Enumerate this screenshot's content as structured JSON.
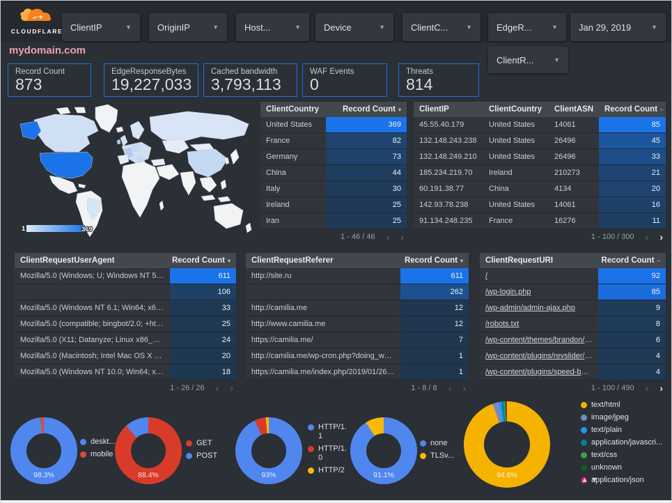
{
  "topbar": {
    "logo": "CLOUDFLARE",
    "filters": [
      "ClientIP",
      "OriginIP",
      "Host...",
      "Device",
      "ClientC...",
      "EdgeR..."
    ],
    "date_filter": "Jan 29, 2019",
    "extra_filter": "ClientR..."
  },
  "title": "mydomain.com",
  "scorecards": [
    {
      "label": "Record Count",
      "value": "873"
    },
    {
      "label": "EdgeResponseBytes",
      "value": "19,227,033"
    },
    {
      "label": "Cached bandwidth",
      "value": "3,793,113"
    },
    {
      "label": "WAF Events",
      "value": "0"
    },
    {
      "label": "Threats",
      "value": "814"
    }
  ],
  "map": {
    "legend_min": "1",
    "legend_max": "369",
    "min_color": "#dce9f8",
    "max_color": "#1a73e8"
  },
  "tables": [
    {
      "id": "country",
      "columns": [
        "ClientCountry",
        "Record Count"
      ],
      "sort_icon": "▾",
      "max": 369,
      "rows": [
        {
          "cells": [
            "United States"
          ],
          "count": 369
        },
        {
          "cells": [
            "France"
          ],
          "count": 82
        },
        {
          "cells": [
            "Germany"
          ],
          "count": 73
        },
        {
          "cells": [
            "China"
          ],
          "count": 44
        },
        {
          "cells": [
            "Italy"
          ],
          "count": 30
        },
        {
          "cells": [
            "Ireland"
          ],
          "count": 25
        },
        {
          "cells": [
            "Iran"
          ],
          "count": 25
        }
      ],
      "pagination": {
        "text": "1 - 46 / 46",
        "prev": false,
        "next": false
      }
    },
    {
      "id": "ip",
      "columns": [
        "ClientIP",
        "ClientCountry",
        "ClientASN",
        "Record Count"
      ],
      "sort_icon": "–",
      "max": 85,
      "rows": [
        {
          "cells": [
            "45.55.40.179",
            "United States",
            "14061"
          ],
          "count": 85
        },
        {
          "cells": [
            "132.148.243.238",
            "United States",
            "26496"
          ],
          "count": 45
        },
        {
          "cells": [
            "132.148.249.210",
            "United States",
            "26496"
          ],
          "count": 33
        },
        {
          "cells": [
            "185.234.219.70",
            "Ireland",
            "210273"
          ],
          "count": 21
        },
        {
          "cells": [
            "60.191.38.77",
            "China",
            "4134"
          ],
          "count": 20
        },
        {
          "cells": [
            "142.93.78.238",
            "United States",
            "14061"
          ],
          "count": 16
        },
        {
          "cells": [
            "91.134.248.235",
            "France",
            "16276"
          ],
          "count": 11
        }
      ],
      "pagination": {
        "text": "1 - 100 / 300",
        "prev": false,
        "next": true
      }
    },
    {
      "id": "ua",
      "columns": [
        "ClientRequestUserAgent",
        "Record Count"
      ],
      "sort_icon": "▾",
      "max": 611,
      "rows": [
        {
          "cells": [
            "Mozilla/5.0 (Windows; U; Windows NT 5.1; en-U..."
          ],
          "count": 611
        },
        {
          "cells": [
            ""
          ],
          "count": 106
        },
        {
          "cells": [
            "Mozilla/5.0 (Windows NT 6.1; Win64; x64; rv:64..."
          ],
          "count": 33
        },
        {
          "cells": [
            "Mozilla/5.0 (compatible; bingbot/2.0; +http://w..."
          ],
          "count": 25
        },
        {
          "cells": [
            "Mozilla/5.0 (X11; Datanyze; Linux x86_64) Appl..."
          ],
          "count": 24
        },
        {
          "cells": [
            "Mozilla/5.0 (Macintosh; Intel Mac OS X 10.11; r..."
          ],
          "count": 20
        },
        {
          "cells": [
            "Mozilla/5.0 (Windows NT 10.0; Win64; x64) App..."
          ],
          "count": 18
        }
      ],
      "pagination": {
        "text": "1 - 26 / 26",
        "prev": false,
        "next": false
      }
    },
    {
      "id": "ref",
      "columns": [
        "ClientRequestReferer",
        "Record Count"
      ],
      "sort_icon": "▾",
      "max": 611,
      "rows": [
        {
          "cells": [
            "http://site.ru"
          ],
          "count": 611
        },
        {
          "cells": [
            ""
          ],
          "count": 262
        },
        {
          "cells": [
            "http://camilia.me"
          ],
          "count": 12
        },
        {
          "cells": [
            "http://www.camilia.me"
          ],
          "count": 12
        },
        {
          "cells": [
            "https://camilia.me/"
          ],
          "count": 7
        },
        {
          "cells": [
            "http://camilia.me/wp-cron.php?doing_wp_cron..."
          ],
          "count": 1
        },
        {
          "cells": [
            "https://camilia.me/index.php/2019/01/26/stor..."
          ],
          "count": 1
        }
      ],
      "pagination": {
        "text": "1 - 8 / 8",
        "prev": false,
        "next": false
      }
    },
    {
      "id": "uri",
      "columns": [
        "ClientRequestURI",
        "Record Count"
      ],
      "sort_icon": "–",
      "links": true,
      "max": 92,
      "rows": [
        {
          "cells": [
            "/"
          ],
          "count": 92
        },
        {
          "cells": [
            "/wp-login.php"
          ],
          "count": 85
        },
        {
          "cells": [
            "/wp-admin/admin-ajax.php"
          ],
          "count": 9
        },
        {
          "cells": [
            "/robots.txt"
          ],
          "count": 8
        },
        {
          "cells": [
            "/wp-content/themes/brandon/plu..."
          ],
          "count": 6
        },
        {
          "cells": [
            "/wp-content/plugins/revslider/rs-p..."
          ],
          "count": 4
        },
        {
          "cells": [
            "/wp-content/plugins/speed-booste..."
          ],
          "count": 4
        }
      ],
      "pagination": {
        "text": "1 - 100 / 490",
        "prev": false,
        "next": true
      }
    }
  ],
  "chart_data": [
    {
      "type": "pie",
      "name": "device-type",
      "labels": [
        "deskt...",
        "mobile"
      ],
      "values": [
        98.3,
        1.7
      ],
      "colors": [
        "#4f87ee",
        "#dd4b38"
      ],
      "center_label": "98.3%",
      "legend_position": "right"
    },
    {
      "type": "pie",
      "name": "request-method",
      "labels": [
        "GET",
        "POST"
      ],
      "values": [
        88.4,
        11.6
      ],
      "colors": [
        "#d93b2b",
        "#4f87ee"
      ],
      "center_label": "88.4%",
      "legend_position": "right"
    },
    {
      "type": "pie",
      "name": "http-protocol",
      "labels": [
        "HTTP/1.1",
        "HTTP/1.0",
        "HTTP/2"
      ],
      "values": [
        93,
        5.5,
        1.5
      ],
      "colors": [
        "#4f87ee",
        "#d93b2b",
        "#f9b906"
      ],
      "center_label": "93%",
      "legend_position": "right"
    },
    {
      "type": "pie",
      "name": "tls-version",
      "labels": [
        "none",
        "TLSv..."
      ],
      "values": [
        91.1,
        8.9
      ],
      "colors": [
        "#4f87ee",
        "#f9b906"
      ],
      "center_label": "91.1%",
      "legend_position": "right"
    },
    {
      "type": "pie",
      "name": "content-type",
      "labels": [
        "text/html",
        "image/jpeg",
        "text/plain",
        "application/javascri...",
        "text/css",
        "unknown",
        "application/json"
      ],
      "values": [
        94.6,
        2.2,
        1.1,
        0.8,
        0.6,
        0.4,
        0.3
      ],
      "colors": [
        "#f5b300",
        "#7b87cb",
        "#2096f3",
        "#00838f",
        "#43a047",
        "#0d5c2e",
        "#d81a60"
      ],
      "center_label": "94.6%",
      "legend_position": "right"
    }
  ]
}
